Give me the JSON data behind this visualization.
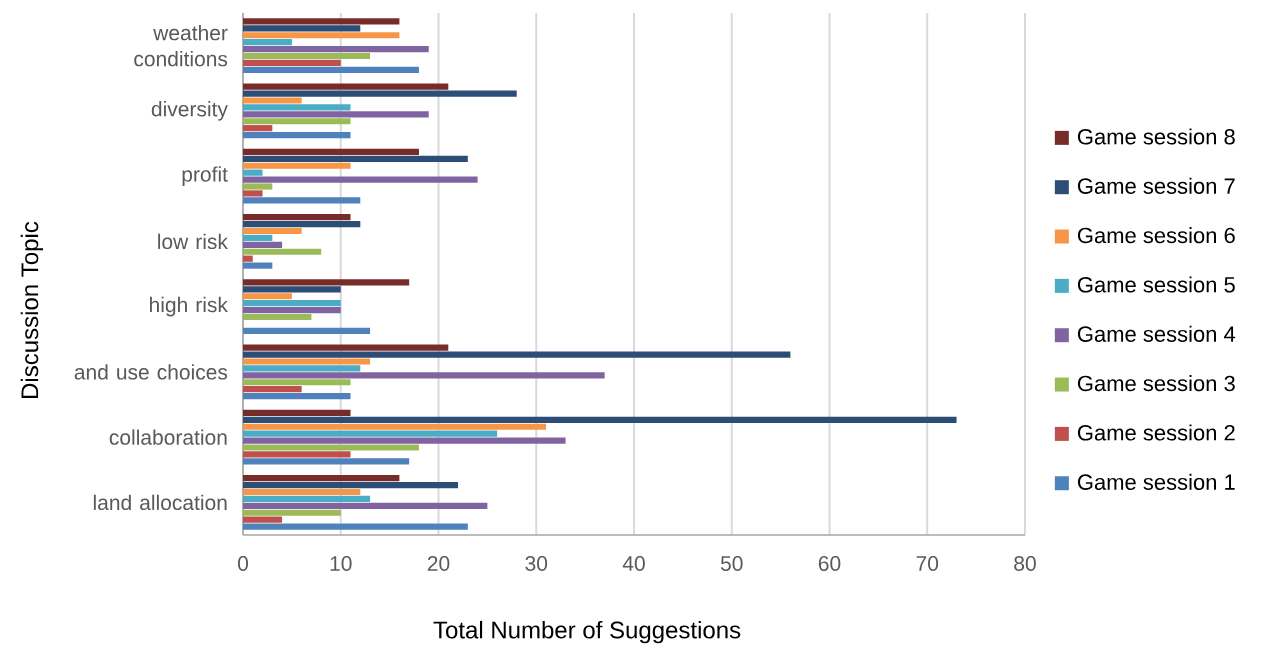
{
  "chart_data": {
    "type": "bar",
    "orientation": "horizontal",
    "xlabel": "Total Number of Suggestions",
    "ylabel": "Discussion Topic",
    "categories": [
      "weather conditions",
      "diversity",
      "profit",
      "low risk",
      "high risk",
      "and use choices",
      "collaboration",
      "land allocation"
    ],
    "series": [
      {
        "name": "Game session 1",
        "color": "#4f81bd",
        "values": [
          18,
          11,
          12,
          3,
          13,
          11,
          17,
          23
        ]
      },
      {
        "name": "Game session 2",
        "color": "#c0504d",
        "values": [
          10,
          3,
          2,
          1,
          null,
          6,
          11,
          4
        ]
      },
      {
        "name": "Game session 3",
        "color": "#9bbb59",
        "values": [
          13,
          11,
          3,
          8,
          7,
          11,
          18,
          10
        ]
      },
      {
        "name": "Game session 4",
        "color": "#8064a2",
        "values": [
          19,
          19,
          24,
          4,
          10,
          37,
          33,
          25
        ]
      },
      {
        "name": "Game session 5",
        "color": "#4bacc6",
        "values": [
          5,
          11,
          2,
          3,
          10,
          12,
          26,
          13
        ]
      },
      {
        "name": "Game session 6",
        "color": "#f79646",
        "values": [
          16,
          6,
          11,
          6,
          5,
          13,
          31,
          12
        ]
      },
      {
        "name": "Game session 7",
        "color": "#2c4d75",
        "values": [
          12,
          28,
          23,
          12,
          10,
          56,
          73,
          22
        ]
      },
      {
        "name": "Game session 8",
        "color": "#772c2a",
        "values": [
          16,
          21,
          18,
          11,
          17,
          21,
          11,
          16
        ]
      }
    ],
    "xlim": [
      0,
      80
    ],
    "xticks": [
      0,
      10,
      20,
      30,
      40,
      50,
      60,
      70,
      80
    ],
    "grid": "x",
    "legend": "right"
  }
}
